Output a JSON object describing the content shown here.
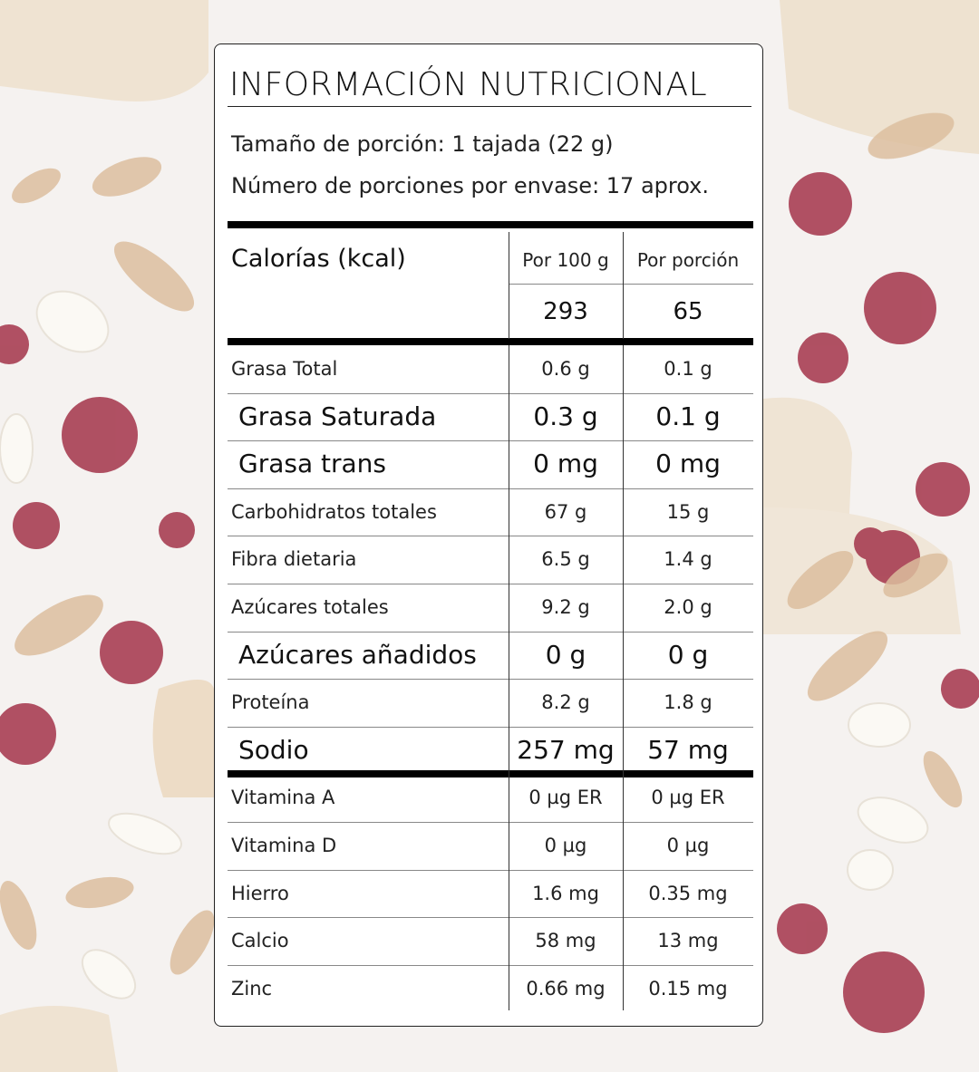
{
  "title": "INFORMACIÓN NUTRICIONAL",
  "serving_size": "Tamaño de porción: 1 tajada (22 g)",
  "servings_per_container": "Número de porciones por envase: 17 aprox.",
  "calories": {
    "label": "Calorías (kcal)",
    "col1_header": "Por 100 g",
    "col2_header": "Por porción",
    "per_100g": "293",
    "per_portion": "65"
  },
  "rows": [
    {
      "name": "Grasa Total",
      "per_100g": "0.6 g",
      "per_portion": "0.1 g",
      "bold": false
    },
    {
      "name": "Grasa Saturada",
      "per_100g": "0.3 g",
      "per_portion": "0.1 g",
      "bold": true
    },
    {
      "name": "Grasa trans",
      "per_100g": "0 mg",
      "per_portion": "0 mg",
      "bold": true
    },
    {
      "name": "Carbohidratos totales",
      "per_100g": "67 g",
      "per_portion": "15 g",
      "bold": false
    },
    {
      "name": "Fibra dietaria",
      "per_100g": "6.5 g",
      "per_portion": "1.4 g",
      "bold": false
    },
    {
      "name": "Azúcares totales",
      "per_100g": "9.2 g",
      "per_portion": "2.0 g",
      "bold": false
    },
    {
      "name": "Azúcares añadidos",
      "per_100g": "0 g",
      "per_portion": "0 g",
      "bold": true
    },
    {
      "name": "Proteína",
      "per_100g": "8.2 g",
      "per_portion": "1.8 g",
      "bold": false
    },
    {
      "name": "Sodio",
      "per_100g": "257 mg",
      "per_portion": "57 mg",
      "bold": true
    },
    {
      "name": "Vitamina A",
      "per_100g": "0 µg ER",
      "per_portion": "0 µg ER",
      "bold": false
    },
    {
      "name": "Vitamina D",
      "per_100g": "0 µg",
      "per_portion": "0 µg",
      "bold": false
    },
    {
      "name": "Hierro",
      "per_100g": "1.6 mg",
      "per_portion": "0.35 mg",
      "bold": false
    },
    {
      "name": "Calcio",
      "per_100g": "58 mg",
      "per_portion": "13 mg",
      "bold": false
    },
    {
      "name": "Zinc",
      "per_100g": "0.66 mg",
      "per_portion": "0.15 mg",
      "bold": false
    }
  ],
  "colors": {
    "cranberry": "#9b2a3a",
    "bread": "#f1e6d6",
    "almond": "#d9b896",
    "card_bg": "#ffffff",
    "rule": "#000000"
  }
}
